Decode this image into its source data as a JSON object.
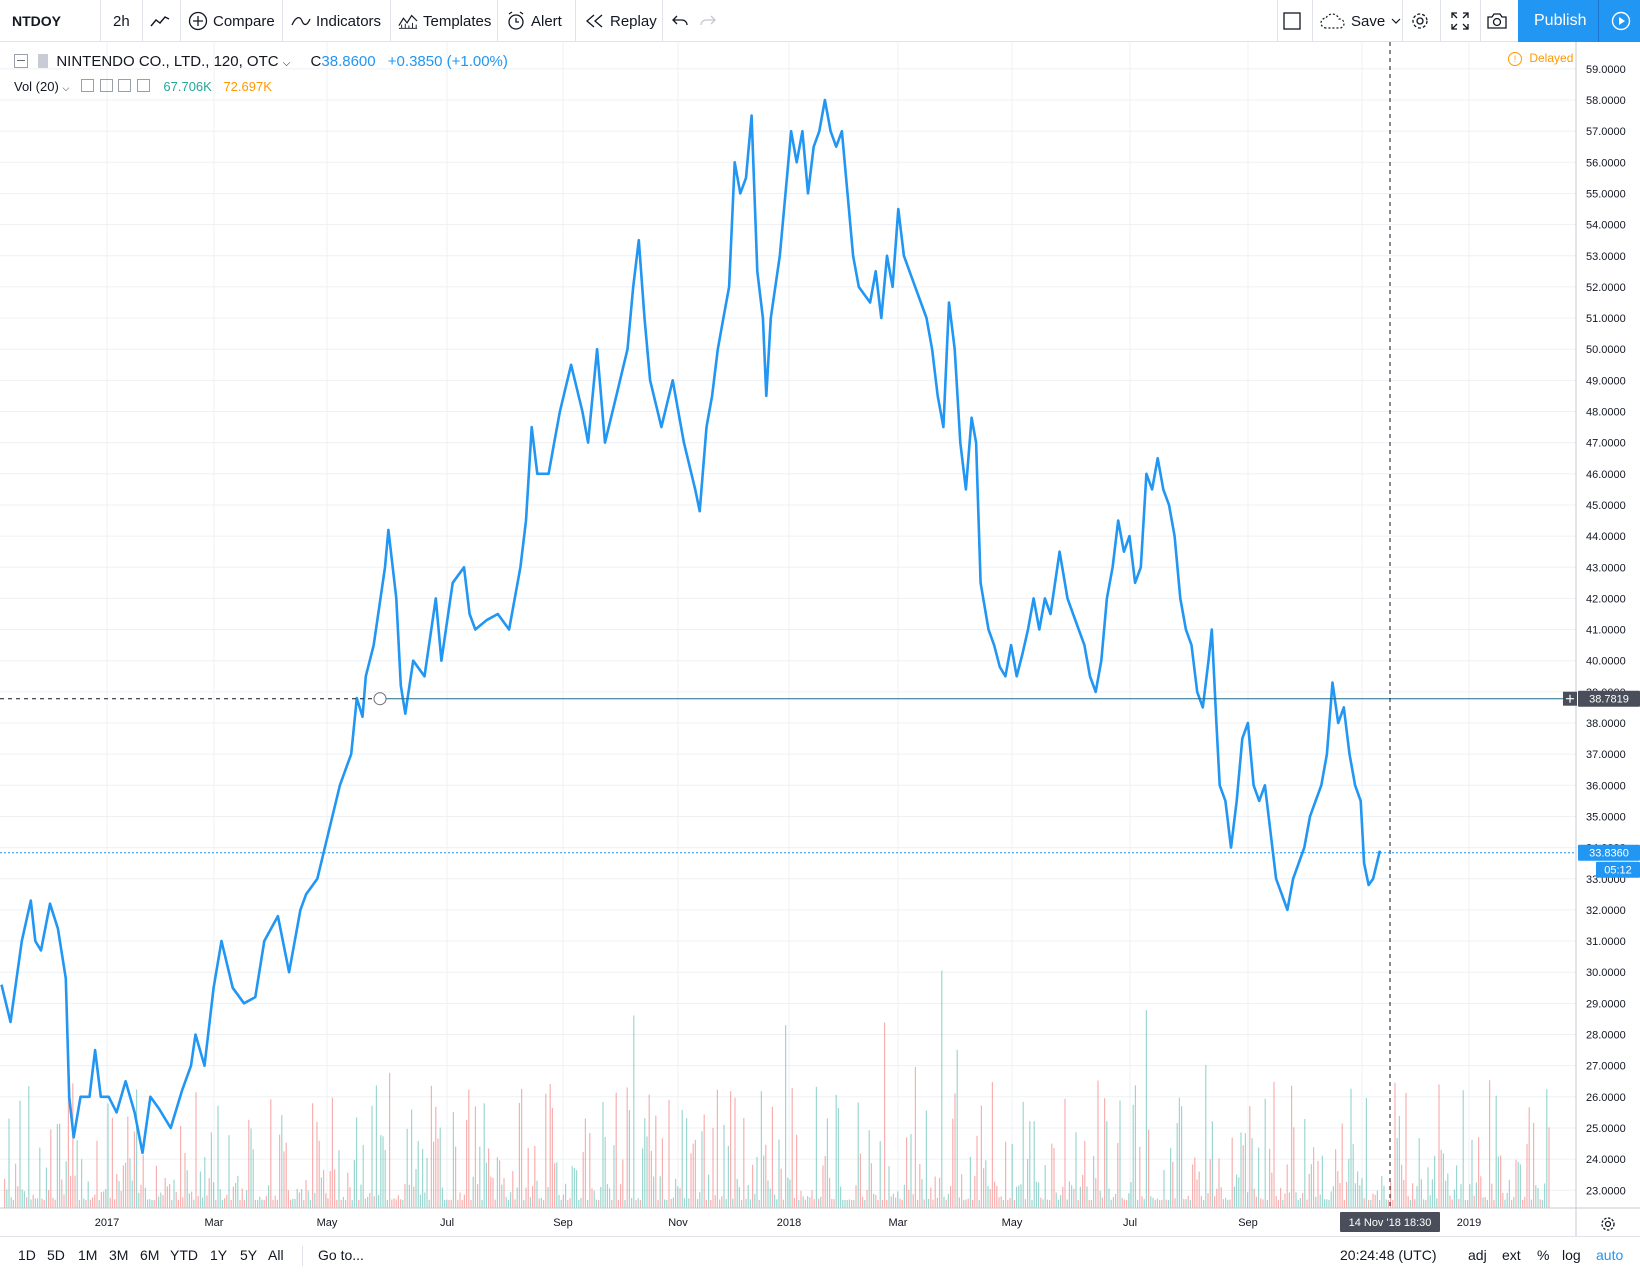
{
  "toolbar": {
    "symbol": "NTDOY",
    "interval": "2h",
    "compare_label": "Compare",
    "indicators_label": "Indicators",
    "templates_label": "Templates",
    "alert_label": "Alert",
    "replay_label": "Replay",
    "save_label": "Save",
    "publish_label": "Publish"
  },
  "legend": {
    "title": "NINTENDO CO., LTD., 120, OTC",
    "close_prefix": "C",
    "close_value": "38.8600",
    "change": "+0.3850 (+1.00%)",
    "delayed": "Delayed",
    "vol_label": "Vol (20)",
    "vol_value_1": "67.706K",
    "vol_value_2": "72.697K"
  },
  "colors": {
    "line": "#2196f3",
    "accent": "#2196f3",
    "vol_up": "#26a69a",
    "vol_down": "#ef5350",
    "delayed": "#ff9800",
    "grid": "#eef0f4"
  },
  "bottom_bar": {
    "ranges": [
      "1D",
      "5D",
      "1M",
      "3M",
      "6M",
      "YTD",
      "1Y",
      "5Y",
      "All"
    ],
    "goto_label": "Go to...",
    "time": "20:24:48 (UTC)",
    "toggles": [
      "adj",
      "ext",
      "%",
      "log",
      "auto"
    ]
  },
  "crosshair": {
    "price_label": "38.7819",
    "date_label": "14 Nov '18",
    "time_label": "18:30"
  },
  "last_price": {
    "label": "33.8360",
    "countdown": "05:12"
  },
  "chart_data": {
    "type": "line",
    "symbol": "NTDOY",
    "ylim": [
      22.6,
      59.4
    ],
    "x_ticks": [
      "2017",
      "Mar",
      "May",
      "Jul",
      "Sep",
      "Nov",
      "2018",
      "Mar",
      "May",
      "Jul",
      "Sep",
      "Nov",
      "2019"
    ],
    "y_ticks": [
      23,
      24,
      25,
      26,
      27,
      28,
      29,
      30,
      31,
      32,
      33,
      34,
      35,
      36,
      37,
      38,
      39,
      40,
      41,
      42,
      43,
      44,
      45,
      46,
      47,
      48,
      49,
      50,
      51,
      52,
      53,
      54,
      55,
      56,
      57,
      58,
      59
    ],
    "grid": true,
    "series": [
      {
        "values": [
          [
            0.0,
            29.6
          ],
          [
            0.8,
            28.4
          ],
          [
            1.8,
            31.0
          ],
          [
            2.6,
            32.3
          ],
          [
            3.0,
            31.0
          ],
          [
            3.5,
            30.7
          ],
          [
            4.3,
            32.2
          ],
          [
            5.0,
            31.4
          ],
          [
            5.7,
            29.8
          ],
          [
            6.0,
            26.0
          ],
          [
            6.4,
            24.7
          ],
          [
            7.0,
            26.0
          ],
          [
            7.8,
            26.0
          ],
          [
            8.3,
            27.5
          ],
          [
            8.8,
            26.0
          ],
          [
            9.5,
            26.0
          ],
          [
            10.2,
            25.5
          ],
          [
            11.0,
            26.5
          ],
          [
            11.8,
            25.5
          ],
          [
            12.5,
            24.2
          ],
          [
            13.2,
            26.0
          ],
          [
            14.0,
            25.6
          ],
          [
            15.0,
            25.0
          ],
          [
            16.0,
            26.2
          ],
          [
            16.8,
            27.0
          ],
          [
            17.2,
            28.0
          ],
          [
            18.0,
            27.0
          ],
          [
            18.8,
            29.5
          ],
          [
            19.5,
            31.0
          ],
          [
            20.5,
            29.5
          ],
          [
            21.5,
            29.0
          ],
          [
            22.5,
            29.2
          ],
          [
            23.3,
            31.0
          ],
          [
            24.5,
            31.8
          ],
          [
            25.5,
            30.0
          ],
          [
            26.5,
            32.0
          ],
          [
            27.0,
            32.5
          ],
          [
            28.0,
            33.0
          ],
          [
            29.0,
            34.5
          ],
          [
            30.0,
            36.0
          ],
          [
            30.5,
            36.5
          ],
          [
            31.0,
            37.0
          ],
          [
            31.5,
            38.8
          ],
          [
            32.0,
            38.2
          ],
          [
            32.3,
            39.5
          ],
          [
            33.0,
            40.5
          ],
          [
            34.0,
            43.0
          ],
          [
            34.3,
            44.2
          ],
          [
            35.0,
            42.0
          ],
          [
            35.4,
            39.2
          ],
          [
            35.8,
            38.3
          ],
          [
            36.5,
            40.0
          ],
          [
            37.5,
            39.5
          ],
          [
            38.5,
            42.0
          ],
          [
            39.0,
            40.0
          ],
          [
            40.0,
            42.5
          ],
          [
            41.0,
            43.0
          ],
          [
            41.5,
            41.5
          ],
          [
            42.0,
            41.0
          ],
          [
            43.0,
            41.3
          ],
          [
            44.0,
            41.5
          ],
          [
            45.0,
            41.0
          ],
          [
            46.0,
            43.0
          ],
          [
            46.5,
            44.5
          ],
          [
            47.0,
            47.5
          ],
          [
            47.5,
            46.0
          ],
          [
            48.5,
            46.0
          ],
          [
            49.0,
            47.0
          ],
          [
            49.5,
            48.0
          ],
          [
            50.5,
            49.5
          ],
          [
            51.5,
            48.0
          ],
          [
            52.0,
            47.0
          ],
          [
            52.8,
            50.0
          ],
          [
            53.5,
            47.0
          ],
          [
            54.5,
            48.5
          ],
          [
            55.5,
            50.0
          ],
          [
            56.0,
            52.0
          ],
          [
            56.5,
            53.5
          ],
          [
            57.0,
            51.0
          ],
          [
            57.5,
            49.0
          ],
          [
            58.5,
            47.5
          ],
          [
            59.5,
            49.0
          ],
          [
            60.5,
            47.0
          ],
          [
            61.5,
            45.5
          ],
          [
            61.9,
            44.8
          ],
          [
            62.5,
            47.5
          ],
          [
            63.0,
            48.5
          ],
          [
            63.5,
            50.0
          ],
          [
            64.0,
            51.0
          ],
          [
            64.5,
            52.0
          ],
          [
            65.0,
            56.0
          ],
          [
            65.5,
            55.0
          ],
          [
            66.0,
            55.5
          ],
          [
            66.5,
            57.5
          ],
          [
            67.0,
            52.5
          ],
          [
            67.5,
            51.0
          ],
          [
            67.8,
            48.5
          ],
          [
            68.2,
            51.0
          ],
          [
            69.0,
            53.0
          ],
          [
            69.5,
            55.0
          ],
          [
            70.0,
            57.0
          ],
          [
            70.5,
            56.0
          ],
          [
            71.0,
            57.0
          ],
          [
            71.5,
            55.0
          ],
          [
            72.0,
            56.5
          ],
          [
            72.5,
            57.0
          ],
          [
            73.0,
            58.0
          ],
          [
            73.5,
            57.0
          ],
          [
            74.0,
            56.5
          ],
          [
            74.5,
            57.0
          ],
          [
            75.0,
            55.0
          ],
          [
            75.5,
            53.0
          ],
          [
            76.0,
            52.0
          ],
          [
            77.0,
            51.5
          ],
          [
            77.5,
            52.5
          ],
          [
            78.0,
            51.0
          ],
          [
            78.5,
            53.0
          ],
          [
            79.0,
            52.0
          ],
          [
            79.5,
            54.5
          ],
          [
            80.0,
            53.0
          ],
          [
            81.0,
            52.0
          ],
          [
            82.0,
            51.0
          ],
          [
            82.5,
            50.0
          ],
          [
            83.0,
            48.5
          ],
          [
            83.5,
            47.5
          ],
          [
            84.0,
            51.5
          ],
          [
            84.5,
            50.0
          ],
          [
            85.0,
            47.0
          ],
          [
            85.5,
            45.5
          ],
          [
            86.0,
            47.8
          ],
          [
            86.4,
            47.0
          ],
          [
            86.8,
            42.5
          ],
          [
            87.5,
            41.0
          ],
          [
            88.0,
            40.5
          ],
          [
            88.5,
            39.8
          ],
          [
            89.0,
            39.5
          ],
          [
            89.5,
            40.5
          ],
          [
            90.0,
            39.5
          ],
          [
            90.5,
            40.2
          ],
          [
            91.0,
            41.0
          ],
          [
            91.5,
            42.0
          ],
          [
            92.0,
            41.0
          ],
          [
            92.5,
            42.0
          ],
          [
            93.0,
            41.5
          ],
          [
            93.8,
            43.5
          ],
          [
            94.5,
            42.0
          ],
          [
            95.0,
            41.5
          ],
          [
            95.5,
            41.0
          ],
          [
            96.0,
            40.5
          ],
          [
            96.5,
            39.5
          ],
          [
            97.0,
            39.0
          ],
          [
            97.5,
            40.0
          ],
          [
            98.0,
            42.0
          ],
          [
            98.5,
            43.0
          ],
          [
            99.0,
            44.5
          ],
          [
            99.5,
            43.5
          ],
          [
            100.0,
            44.0
          ],
          [
            100.5,
            42.5
          ],
          [
            101.0,
            43.0
          ],
          [
            101.5,
            46.0
          ],
          [
            102.0,
            45.5
          ],
          [
            102.5,
            46.5
          ],
          [
            103.0,
            45.5
          ],
          [
            103.5,
            45.0
          ],
          [
            104.0,
            44.0
          ],
          [
            104.5,
            42.0
          ],
          [
            105.0,
            41.0
          ],
          [
            105.5,
            40.5
          ],
          [
            106.0,
            39.0
          ],
          [
            106.5,
            38.5
          ],
          [
            107.0,
            40.0
          ],
          [
            107.3,
            41.0
          ],
          [
            107.7,
            38.0
          ],
          [
            108.0,
            36.0
          ],
          [
            108.5,
            35.5
          ],
          [
            109.0,
            34.0
          ],
          [
            109.5,
            35.5
          ],
          [
            110.0,
            37.5
          ],
          [
            110.5,
            38.0
          ],
          [
            111.0,
            36.0
          ],
          [
            111.5,
            35.5
          ],
          [
            112.0,
            36.0
          ],
          [
            112.5,
            34.5
          ],
          [
            113.0,
            33.0
          ],
          [
            113.5,
            32.5
          ],
          [
            114.0,
            32.0
          ],
          [
            114.5,
            33.0
          ],
          [
            115.0,
            33.5
          ],
          [
            115.5,
            34.0
          ],
          [
            116.0,
            35.0
          ],
          [
            116.5,
            35.5
          ],
          [
            117.0,
            36.0
          ],
          [
            117.5,
            37.0
          ],
          [
            118.0,
            39.3
          ],
          [
            118.5,
            38.0
          ],
          [
            119.0,
            38.5
          ],
          [
            119.5,
            37.0
          ],
          [
            120.0,
            36.0
          ],
          [
            120.5,
            35.5
          ],
          [
            120.8,
            33.5
          ],
          [
            121.2,
            32.8
          ],
          [
            121.6,
            33.0
          ],
          [
            122.2,
            33.9
          ]
        ]
      }
    ]
  }
}
